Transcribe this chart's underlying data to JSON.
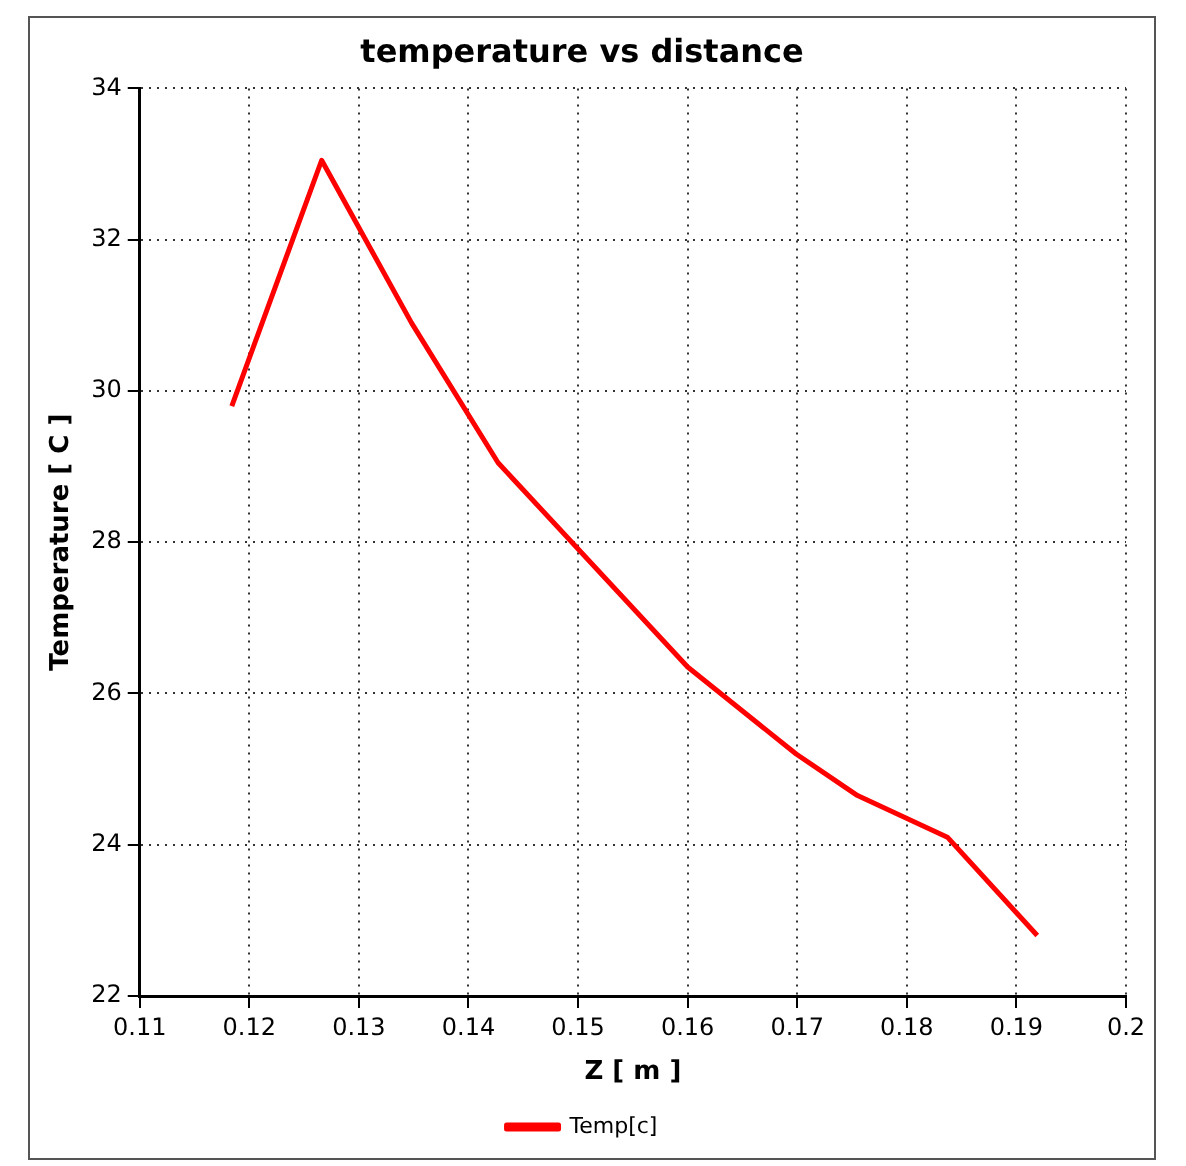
{
  "chart_data": {
    "type": "line",
    "title": "temperature vs distance",
    "xlabel": "Z [ m ]",
    "ylabel": "Temperature [ C ]",
    "series": [
      {
        "name": "Temp[c]",
        "color": "#ff0000",
        "x": [
          0.1184,
          0.1266,
          0.1348,
          0.1427,
          0.16,
          0.1699,
          0.1755,
          0.1837,
          0.1919
        ],
        "values": [
          29.8,
          33.05,
          30.9,
          29.05,
          26.35,
          25.2,
          24.65,
          24.1,
          22.8
        ]
      }
    ],
    "xlim": [
      0.11,
      0.2
    ],
    "xticks": [
      0.11,
      0.12,
      0.13,
      0.14,
      0.15,
      0.16,
      0.17,
      0.18,
      0.19,
      0.2
    ],
    "ylim": [
      22,
      34
    ],
    "yticks": [
      22,
      24,
      26,
      28,
      30,
      32,
      34
    ],
    "grid": true,
    "legend": "bottom",
    "marker": "none",
    "line_style": "solid"
  }
}
